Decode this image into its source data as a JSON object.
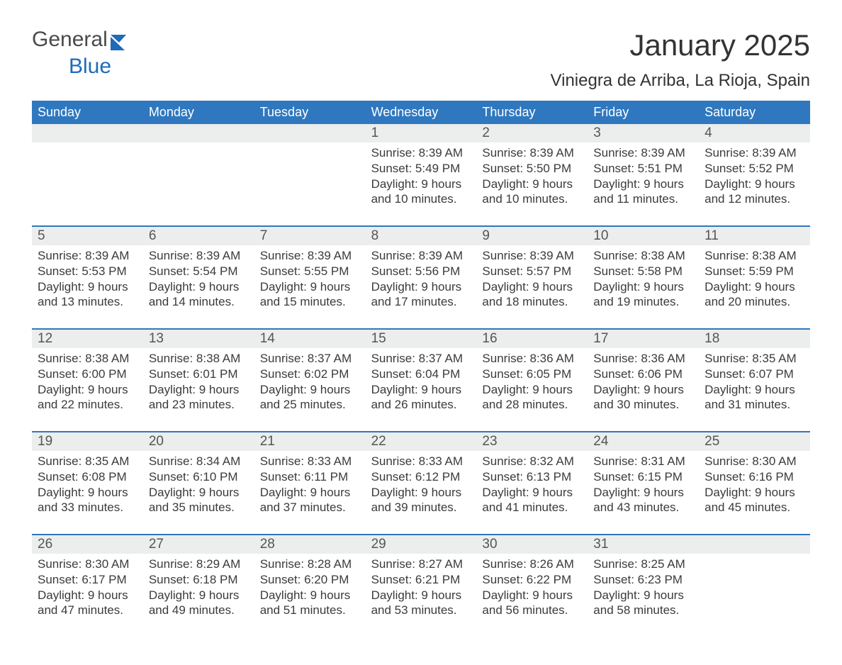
{
  "brand": {
    "word1": "General",
    "word2": "Blue",
    "flag_color": "#1e6bb8"
  },
  "header": {
    "month_title": "January 2025",
    "location": "Viniegra de Arriba, La Rioja, Spain"
  },
  "colors": {
    "header_bg": "#2f78bf",
    "header_text": "#ffffff",
    "band_bg": "#eceded",
    "rule": "#2f78bf",
    "text": "#333333"
  },
  "weekdays": [
    "Sunday",
    "Monday",
    "Tuesday",
    "Wednesday",
    "Thursday",
    "Friday",
    "Saturday"
  ],
  "labels": {
    "sunrise": "Sunrise:",
    "sunset": "Sunset:",
    "daylight": "Daylight:"
  },
  "weeks": [
    [
      {
        "blank": true
      },
      {
        "blank": true
      },
      {
        "blank": true
      },
      {
        "num": "1",
        "sunrise": "8:39 AM",
        "sunset": "5:49 PM",
        "daylight": "9 hours and 10 minutes."
      },
      {
        "num": "2",
        "sunrise": "8:39 AM",
        "sunset": "5:50 PM",
        "daylight": "9 hours and 10 minutes."
      },
      {
        "num": "3",
        "sunrise": "8:39 AM",
        "sunset": "5:51 PM",
        "daylight": "9 hours and 11 minutes."
      },
      {
        "num": "4",
        "sunrise": "8:39 AM",
        "sunset": "5:52 PM",
        "daylight": "9 hours and 12 minutes."
      }
    ],
    [
      {
        "num": "5",
        "sunrise": "8:39 AM",
        "sunset": "5:53 PM",
        "daylight": "9 hours and 13 minutes."
      },
      {
        "num": "6",
        "sunrise": "8:39 AM",
        "sunset": "5:54 PM",
        "daylight": "9 hours and 14 minutes."
      },
      {
        "num": "7",
        "sunrise": "8:39 AM",
        "sunset": "5:55 PM",
        "daylight": "9 hours and 15 minutes."
      },
      {
        "num": "8",
        "sunrise": "8:39 AM",
        "sunset": "5:56 PM",
        "daylight": "9 hours and 17 minutes."
      },
      {
        "num": "9",
        "sunrise": "8:39 AM",
        "sunset": "5:57 PM",
        "daylight": "9 hours and 18 minutes."
      },
      {
        "num": "10",
        "sunrise": "8:38 AM",
        "sunset": "5:58 PM",
        "daylight": "9 hours and 19 minutes."
      },
      {
        "num": "11",
        "sunrise": "8:38 AM",
        "sunset": "5:59 PM",
        "daylight": "9 hours and 20 minutes."
      }
    ],
    [
      {
        "num": "12",
        "sunrise": "8:38 AM",
        "sunset": "6:00 PM",
        "daylight": "9 hours and 22 minutes."
      },
      {
        "num": "13",
        "sunrise": "8:38 AM",
        "sunset": "6:01 PM",
        "daylight": "9 hours and 23 minutes."
      },
      {
        "num": "14",
        "sunrise": "8:37 AM",
        "sunset": "6:02 PM",
        "daylight": "9 hours and 25 minutes."
      },
      {
        "num": "15",
        "sunrise": "8:37 AM",
        "sunset": "6:04 PM",
        "daylight": "9 hours and 26 minutes."
      },
      {
        "num": "16",
        "sunrise": "8:36 AM",
        "sunset": "6:05 PM",
        "daylight": "9 hours and 28 minutes."
      },
      {
        "num": "17",
        "sunrise": "8:36 AM",
        "sunset": "6:06 PM",
        "daylight": "9 hours and 30 minutes."
      },
      {
        "num": "18",
        "sunrise": "8:35 AM",
        "sunset": "6:07 PM",
        "daylight": "9 hours and 31 minutes."
      }
    ],
    [
      {
        "num": "19",
        "sunrise": "8:35 AM",
        "sunset": "6:08 PM",
        "daylight": "9 hours and 33 minutes."
      },
      {
        "num": "20",
        "sunrise": "8:34 AM",
        "sunset": "6:10 PM",
        "daylight": "9 hours and 35 minutes."
      },
      {
        "num": "21",
        "sunrise": "8:33 AM",
        "sunset": "6:11 PM",
        "daylight": "9 hours and 37 minutes."
      },
      {
        "num": "22",
        "sunrise": "8:33 AM",
        "sunset": "6:12 PM",
        "daylight": "9 hours and 39 minutes."
      },
      {
        "num": "23",
        "sunrise": "8:32 AM",
        "sunset": "6:13 PM",
        "daylight": "9 hours and 41 minutes."
      },
      {
        "num": "24",
        "sunrise": "8:31 AM",
        "sunset": "6:15 PM",
        "daylight": "9 hours and 43 minutes."
      },
      {
        "num": "25",
        "sunrise": "8:30 AM",
        "sunset": "6:16 PM",
        "daylight": "9 hours and 45 minutes."
      }
    ],
    [
      {
        "num": "26",
        "sunrise": "8:30 AM",
        "sunset": "6:17 PM",
        "daylight": "9 hours and 47 minutes."
      },
      {
        "num": "27",
        "sunrise": "8:29 AM",
        "sunset": "6:18 PM",
        "daylight": "9 hours and 49 minutes."
      },
      {
        "num": "28",
        "sunrise": "8:28 AM",
        "sunset": "6:20 PM",
        "daylight": "9 hours and 51 minutes."
      },
      {
        "num": "29",
        "sunrise": "8:27 AM",
        "sunset": "6:21 PM",
        "daylight": "9 hours and 53 minutes."
      },
      {
        "num": "30",
        "sunrise": "8:26 AM",
        "sunset": "6:22 PM",
        "daylight": "9 hours and 56 minutes."
      },
      {
        "num": "31",
        "sunrise": "8:25 AM",
        "sunset": "6:23 PM",
        "daylight": "9 hours and 58 minutes."
      },
      {
        "blank": true
      }
    ]
  ]
}
